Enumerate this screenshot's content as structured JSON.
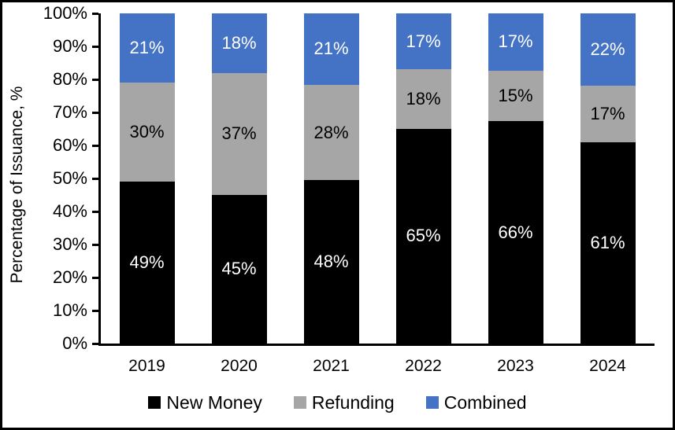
{
  "chart_data": {
    "type": "bar",
    "variant": "stacked-column",
    "title": "",
    "xlabel": "",
    "ylabel": "Percentage of Issuance, %",
    "ylim": [
      0,
      100
    ],
    "y_tick_labels": [
      "0%",
      "10%",
      "20%",
      "30%",
      "40%",
      "50%",
      "60%",
      "70%",
      "80%",
      "90%",
      "100%"
    ],
    "categories": [
      "2019",
      "2020",
      "2021",
      "2022",
      "2023",
      "2024"
    ],
    "series": [
      {
        "name": "New Money",
        "color": "#000000",
        "label_color": "#FFFFFF",
        "values": [
          49,
          45,
          48,
          65,
          66,
          61
        ],
        "data_labels": [
          "49%",
          "45%",
          "48%",
          "65%",
          "66%",
          "61%"
        ]
      },
      {
        "name": "Refunding",
        "color": "#A6A6A6",
        "label_color": "#000000",
        "values": [
          30,
          37,
          28,
          18,
          15,
          17
        ],
        "data_labels": [
          "30%",
          "37%",
          "28%",
          "18%",
          "15%",
          "17%"
        ]
      },
      {
        "name": "Combined",
        "color": "#4472C4",
        "label_color": "#FFFFFF",
        "values": [
          21,
          18,
          21,
          17,
          17,
          22
        ],
        "data_labels": [
          "21%",
          "18%",
          "21%",
          "17%",
          "17%",
          "22%"
        ]
      }
    ],
    "legend": {
      "position": "bottom"
    },
    "grid": false,
    "background": "#FFFFFF",
    "frame_border_color": "#000000"
  }
}
